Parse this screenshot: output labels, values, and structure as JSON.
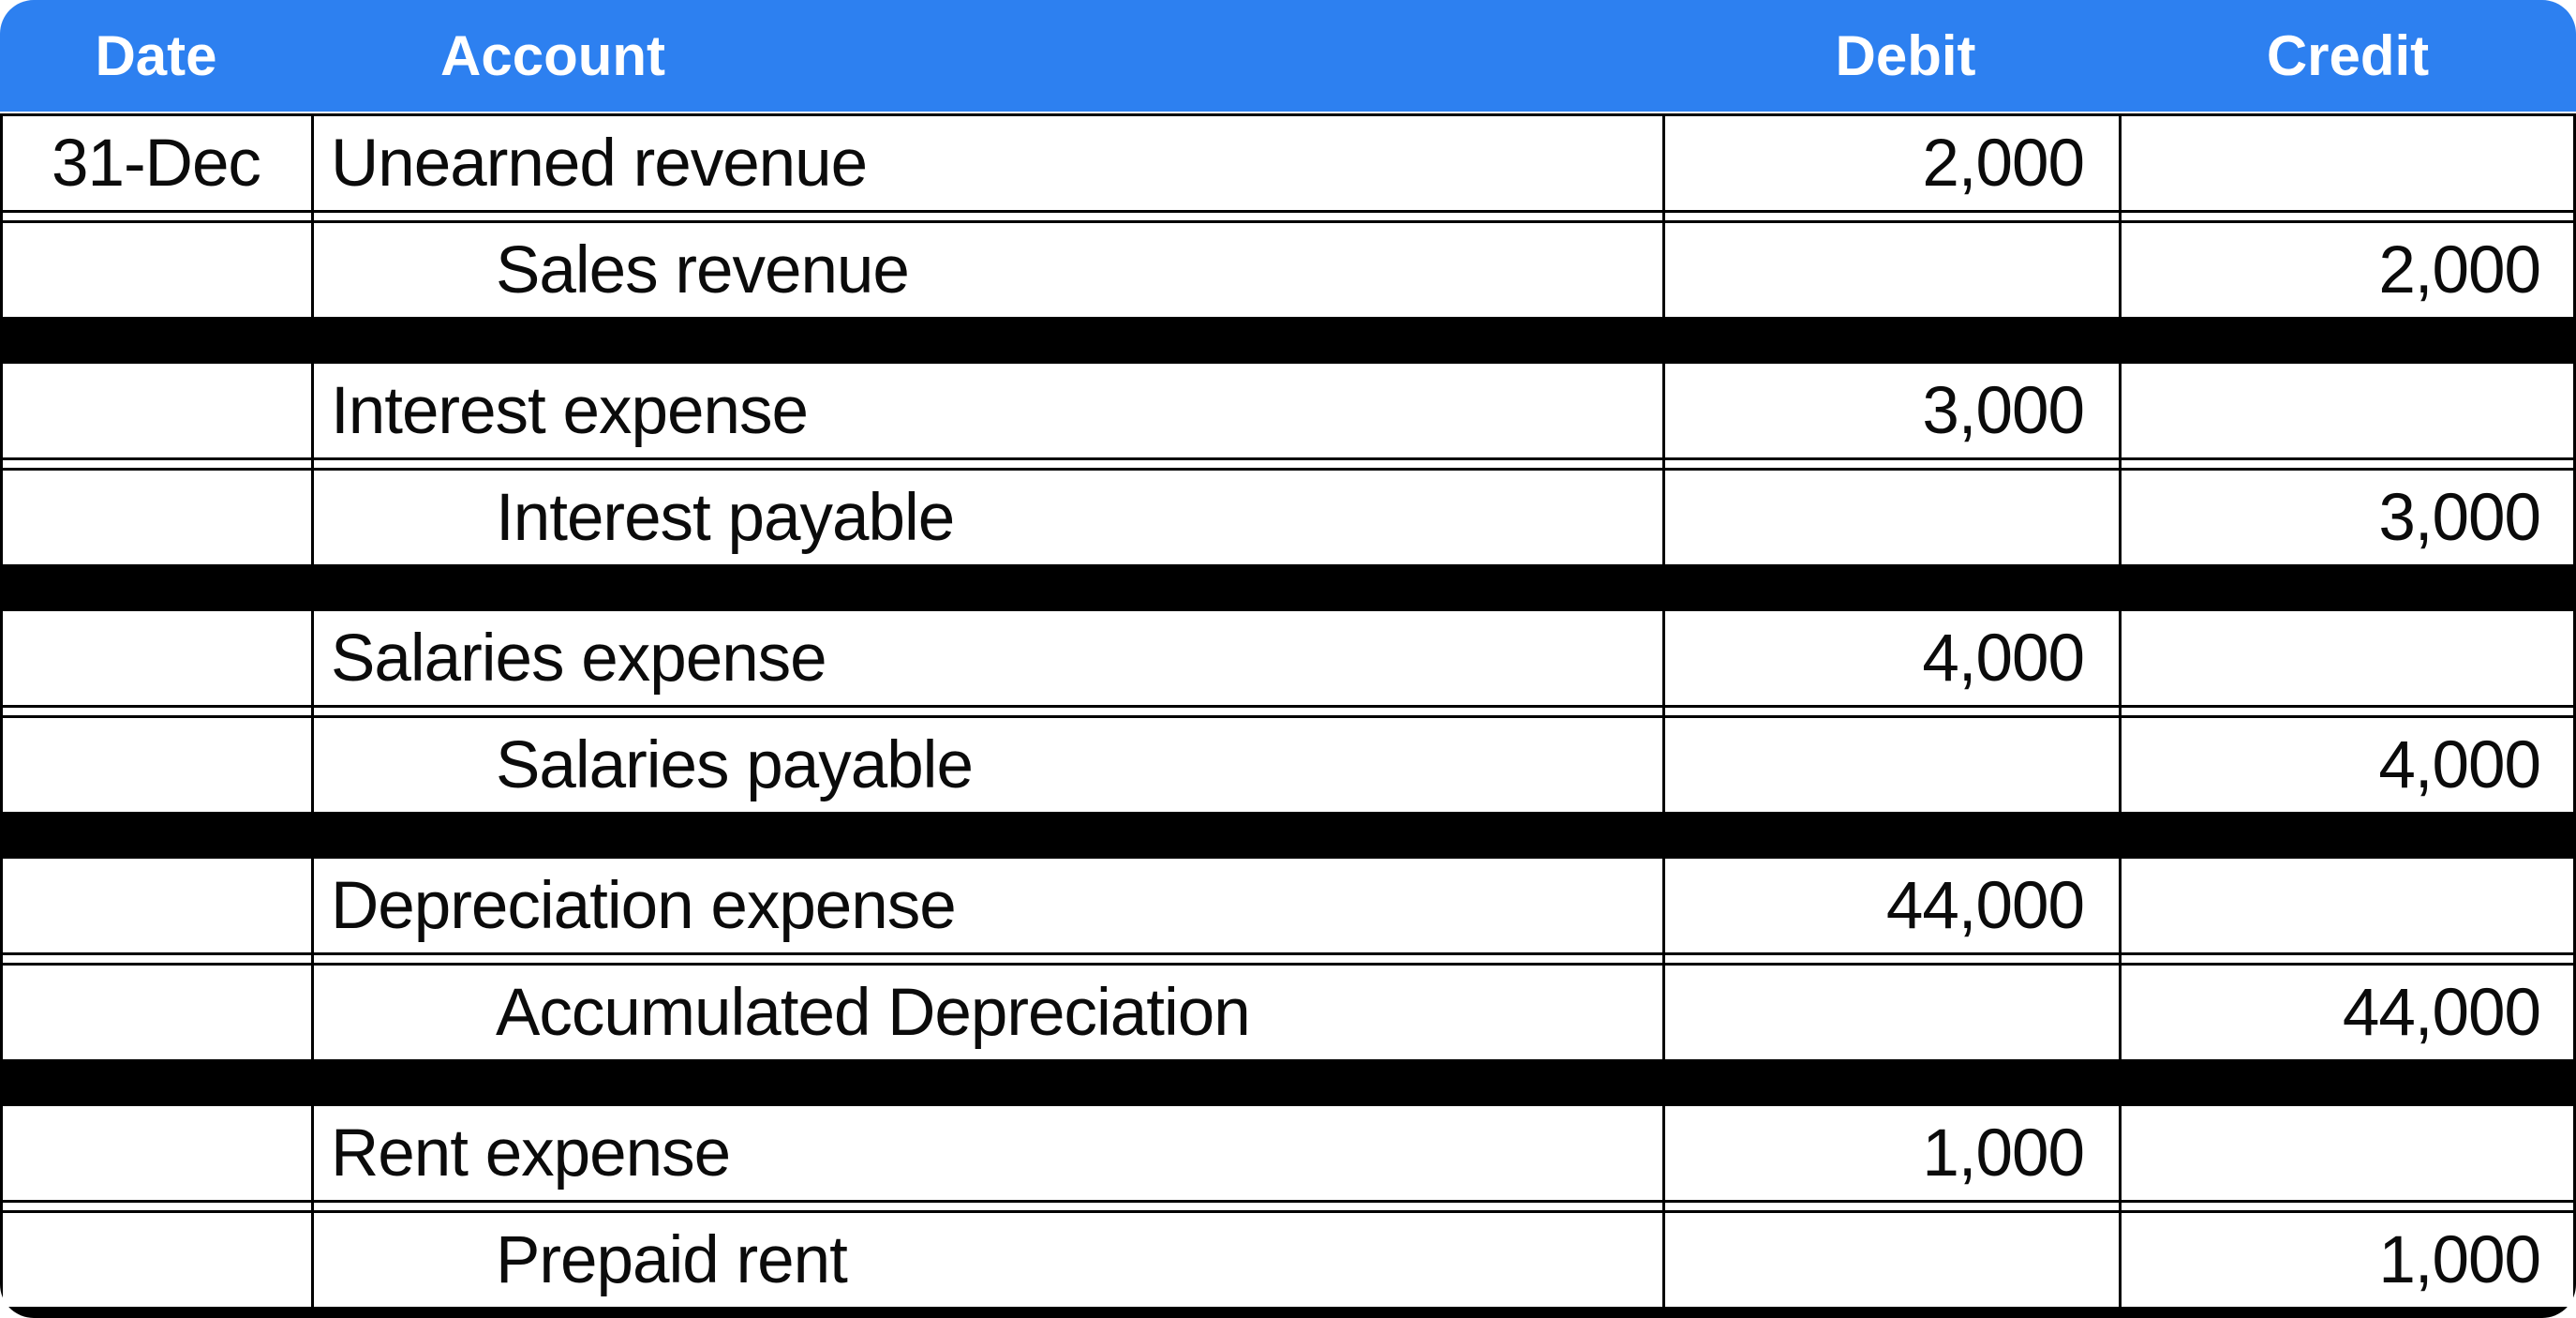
{
  "theme": {
    "header_bg": "#2D80F0",
    "header_text": "#FFFFFF",
    "line_color": "#000000",
    "row_bg": "#FFFFFF",
    "separator_color": "#000000",
    "text_color": "#0B0B0B"
  },
  "table": {
    "columns": [
      {
        "key": "date",
        "label": "Date"
      },
      {
        "key": "account",
        "label": "Account"
      },
      {
        "key": "debit",
        "label": "Debit"
      },
      {
        "key": "credit",
        "label": "Credit"
      }
    ],
    "entries": [
      {
        "date": "31-Dec",
        "debit_account": "Unearned revenue",
        "debit": "2,000",
        "credit_account": "Sales revenue",
        "credit": "2,000"
      },
      {
        "date": "",
        "debit_account": "Interest expense",
        "debit": "3,000",
        "credit_account": "Interest payable",
        "credit": "3,000"
      },
      {
        "date": "",
        "debit_account": "Salaries expense",
        "debit": "4,000",
        "credit_account": "Salaries payable",
        "credit": "4,000"
      },
      {
        "date": "",
        "debit_account": "Depreciation expense",
        "debit": "44,000",
        "credit_account": "Accumulated Depreciation",
        "credit": "44,000"
      },
      {
        "date": "",
        "debit_account": "Rent expense",
        "debit": "1,000",
        "credit_account": "Prepaid rent",
        "credit": "1,000"
      }
    ]
  }
}
